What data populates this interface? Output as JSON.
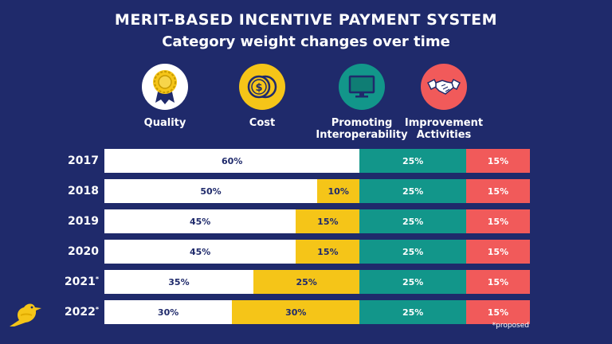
{
  "header": {
    "title": "MERIT-BASED INCENTIVE PAYMENT SYSTEM",
    "subtitle": "Category weight changes over time"
  },
  "categories": [
    {
      "label": "Quality",
      "icon": "award-ribbon-icon",
      "color": "#ffffff"
    },
    {
      "label": "Cost",
      "icon": "coins-icon",
      "color": "#f5c518"
    },
    {
      "label": "Promoting Interoperability",
      "icon": "monitor-icon",
      "color": "#12968a"
    },
    {
      "label": "Improvement Activities",
      "icon": "handshake-icon",
      "color": "#f15a5a"
    }
  ],
  "chart_data": {
    "type": "bar",
    "orientation": "horizontal",
    "stacked": true,
    "title": "MERIT-BASED INCENTIVE PAYMENT SYSTEM",
    "subtitle": "Category weight changes over time",
    "categories": [
      "2017",
      "2018",
      "2019",
      "2020",
      "2021",
      "2022"
    ],
    "year_marks": [
      "",
      "",
      "",
      "",
      "*",
      "*"
    ],
    "series": [
      {
        "name": "Quality",
        "color": "#ffffff",
        "values": [
          60,
          50,
          45,
          45,
          35,
          30
        ]
      },
      {
        "name": "Cost",
        "color": "#f5c518",
        "values": [
          0,
          10,
          15,
          15,
          25,
          30
        ]
      },
      {
        "name": "Promoting Interoperability",
        "color": "#12968a",
        "values": [
          25,
          25,
          25,
          25,
          25,
          25
        ]
      },
      {
        "name": "Improvement Activities",
        "color": "#f15a5a",
        "values": [
          15,
          15,
          15,
          15,
          15,
          15
        ]
      }
    ],
    "value_suffix": "%",
    "xlim": [
      0,
      100
    ],
    "footnote": "*proposed"
  }
}
